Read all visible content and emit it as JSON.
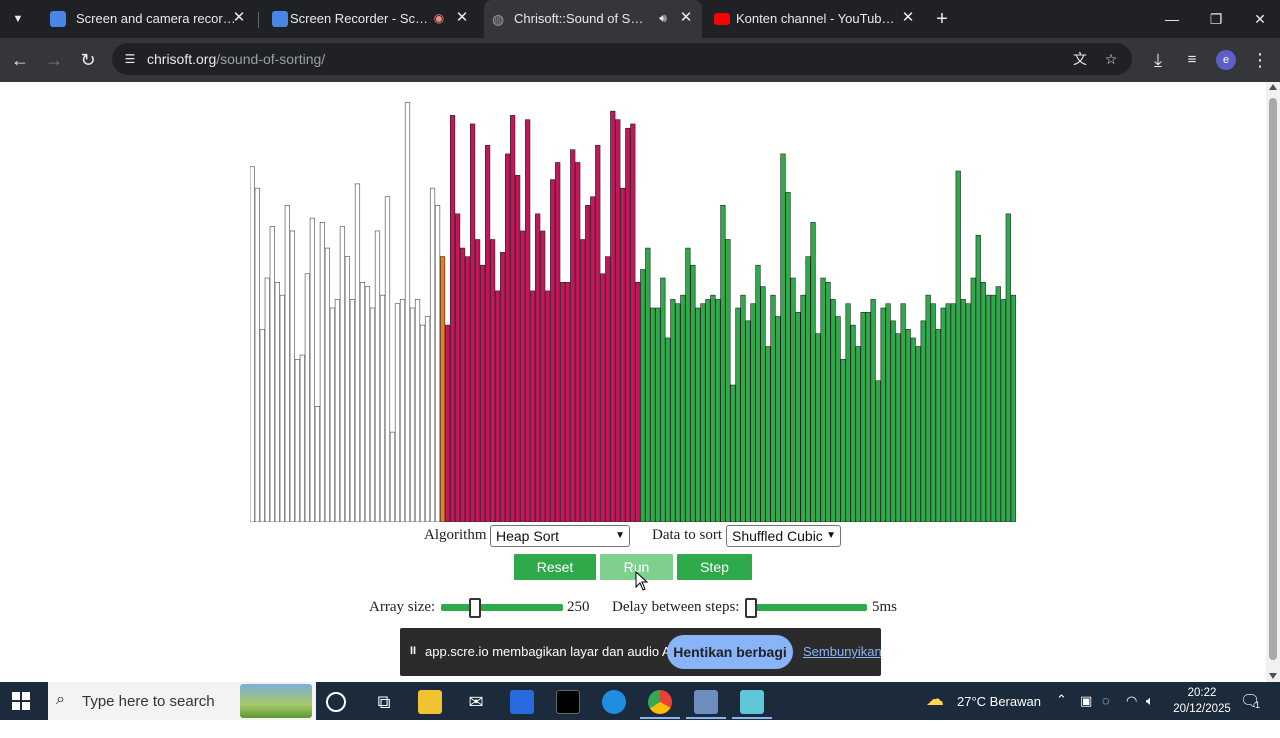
{
  "browser": {
    "tabs": [
      {
        "title": "Screen and camera recorder - S",
        "favicon_color": "#4a86e8",
        "active": false
      },
      {
        "title": "Screen Recorder - Scre.io",
        "favicon_color": "#4a86e8",
        "active": false,
        "recording": true
      },
      {
        "title": "Chrisoft::Sound of Sorting",
        "favicon_color": "#9aa0a6",
        "active": true,
        "audio": true
      },
      {
        "title": "Konten channel - YouTube Stud",
        "favicon_color": "#ff0000",
        "active": false
      }
    ],
    "url_host": "chrisoft.org",
    "url_path": "/sound-of-sorting/",
    "profile_letter": "e"
  },
  "page": {
    "algorithm_label": "Algorithm",
    "algorithm_value": "Heap Sort",
    "data_label": "Data to sort",
    "data_value": "Shuffled Cubic",
    "buttons": {
      "reset": "Reset",
      "run": "Run",
      "step": "Step"
    },
    "array_size_label": "Array size:",
    "array_size_value": "250",
    "array_size_fraction": 0.25,
    "delay_label": "Delay between steps:",
    "delay_value": "5ms",
    "delay_fraction": 0.0,
    "colors": {
      "sorted": "#2eaa4a",
      "active": "#c2185b",
      "unsorted": "#ffffff",
      "highlight": "#e67e22"
    }
  },
  "chart_data": {
    "type": "bar",
    "title": "",
    "xlabel": "",
    "ylabel": "",
    "ylim": [
      0,
      1
    ],
    "bar_count": 153,
    "segments": [
      {
        "state": "unsorted",
        "count": 38
      },
      {
        "state": "highlight",
        "count": 1
      },
      {
        "state": "active",
        "count": 39
      },
      {
        "state": "sorted",
        "count": 75
      }
    ],
    "values": [
      0.83,
      0.78,
      0.45,
      0.57,
      0.69,
      0.56,
      0.53,
      0.74,
      0.68,
      0.38,
      0.39,
      0.58,
      0.71,
      0.27,
      0.7,
      0.64,
      0.5,
      0.52,
      0.69,
      0.62,
      0.52,
      0.79,
      0.56,
      0.55,
      0.5,
      0.68,
      0.53,
      0.76,
      0.21,
      0.51,
      0.52,
      0.98,
      0.5,
      0.52,
      0.46,
      0.48,
      0.78,
      0.74,
      0.62,
      0.46,
      0.95,
      0.72,
      0.64,
      0.62,
      0.93,
      0.66,
      0.6,
      0.88,
      0.66,
      0.54,
      0.63,
      0.86,
      0.95,
      0.81,
      0.68,
      0.94,
      0.54,
      0.72,
      0.68,
      0.54,
      0.8,
      0.84,
      0.56,
      0.56,
      0.87,
      0.84,
      0.66,
      0.74,
      0.76,
      0.88,
      0.58,
      0.62,
      0.96,
      0.94,
      0.78,
      0.92,
      0.93,
      0.56,
      0.59,
      0.64,
      0.5,
      0.5,
      0.57,
      0.43,
      0.52,
      0.51,
      0.53,
      0.64,
      0.6,
      0.5,
      0.51,
      0.52,
      0.53,
      0.52,
      0.74,
      0.66,
      0.32,
      0.5,
      0.53,
      0.47,
      0.51,
      0.6,
      0.55,
      0.41,
      0.53,
      0.48,
      0.86,
      0.77,
      0.57,
      0.49,
      0.53,
      0.62,
      0.7,
      0.44,
      0.57,
      0.56,
      0.52,
      0.48,
      0.38,
      0.51,
      0.46,
      0.41,
      0.49,
      0.49,
      0.52,
      0.33,
      0.5,
      0.51,
      0.47,
      0.44,
      0.51,
      0.45,
      0.43,
      0.41,
      0.47,
      0.53,
      0.51,
      0.45,
      0.5,
      0.51,
      0.51,
      0.82,
      0.52,
      0.51,
      0.57,
      0.67,
      0.56,
      0.53,
      0.53,
      0.55,
      0.52,
      0.72,
      0.53
    ]
  },
  "share_notice": {
    "message": "app.scre.io membagikan layar dan audio Anda.",
    "stop_label": "Hentikan berbagi",
    "hide_label": "Sembunyikan"
  },
  "taskbar": {
    "search_placeholder": "Type here to search",
    "weather": "27°C  Berawan",
    "time": "20:22",
    "date": "20/12/2025",
    "notification_count": "1"
  }
}
